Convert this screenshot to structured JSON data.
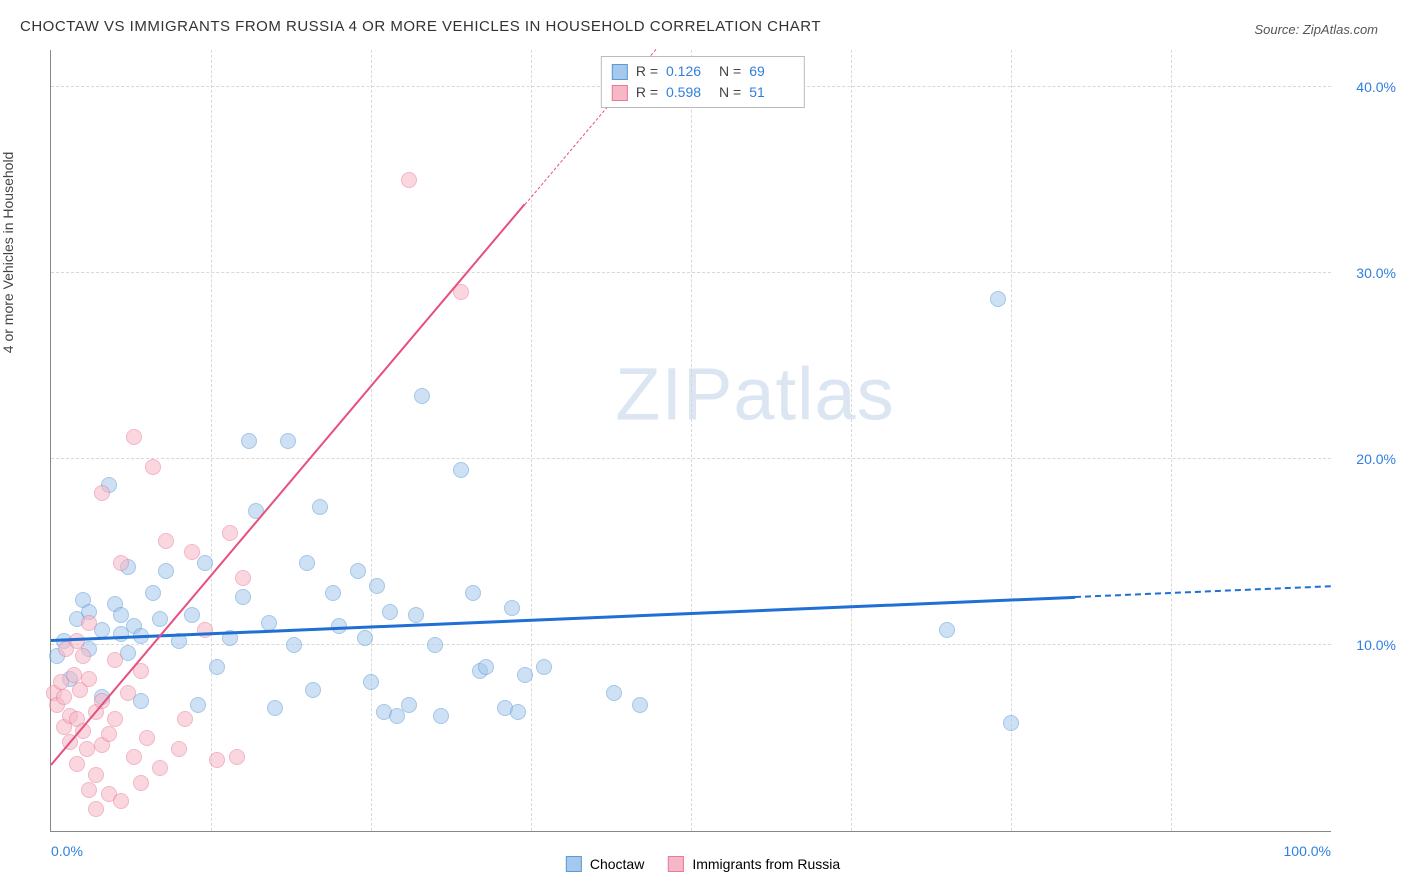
{
  "title": "CHOCTAW VS IMMIGRANTS FROM RUSSIA 4 OR MORE VEHICLES IN HOUSEHOLD CORRELATION CHART",
  "source": "Source: ZipAtlas.com",
  "y_axis_label": "4 or more Vehicles in Household",
  "watermark_a": "ZIP",
  "watermark_b": "atlas",
  "chart": {
    "type": "scatter",
    "xlim": [
      0,
      100
    ],
    "ylim": [
      0,
      42
    ],
    "x_ticks": [
      0,
      100
    ],
    "x_tick_labels": [
      "0.0%",
      "100.0%"
    ],
    "y_ticks": [
      10,
      20,
      30,
      40
    ],
    "y_tick_labels": [
      "10.0%",
      "20.0%",
      "30.0%",
      "40.0%"
    ],
    "x_minor_grid": [
      12.5,
      25,
      37.5,
      50,
      62.5,
      75,
      87.5
    ],
    "background_color": "#ffffff",
    "grid_color": "#d8d8d8",
    "axis_color": "#888888",
    "point_radius": 8,
    "point_stroke_width": 1.5,
    "series": [
      {
        "name": "Choctaw",
        "fill_color": "#a6c8ec",
        "stroke_color": "#5a9bd8",
        "fill_opacity": 0.55,
        "trend_color": "#1f6fd4",
        "trend_width": 2.5,
        "trend_y_at_x0": 10.2,
        "trend_y_at_x100": 13.1,
        "R": "0.126",
        "N": "69",
        "points": [
          [
            0.5,
            9.4
          ],
          [
            1,
            10.2
          ],
          [
            1.5,
            8.2
          ],
          [
            2,
            11.4
          ],
          [
            2.5,
            12.4
          ],
          [
            3,
            9.8
          ],
          [
            3,
            11.8
          ],
          [
            4,
            10.8
          ],
          [
            4,
            7.2
          ],
          [
            4.5,
            18.6
          ],
          [
            5,
            12.2
          ],
          [
            5.5,
            10.6
          ],
          [
            5.5,
            11.6
          ],
          [
            6,
            9.6
          ],
          [
            6,
            14.2
          ],
          [
            6.5,
            11.0
          ],
          [
            7,
            10.5
          ],
          [
            7,
            7.0
          ],
          [
            8,
            12.8
          ],
          [
            8.5,
            11.4
          ],
          [
            9,
            14.0
          ],
          [
            10,
            10.2
          ],
          [
            11,
            11.6
          ],
          [
            11.5,
            6.8
          ],
          [
            12,
            14.4
          ],
          [
            13,
            8.8
          ],
          [
            14,
            10.4
          ],
          [
            15,
            12.6
          ],
          [
            15.5,
            21.0
          ],
          [
            16,
            17.2
          ],
          [
            17,
            11.2
          ],
          [
            17.5,
            6.6
          ],
          [
            18.5,
            21.0
          ],
          [
            19,
            10.0
          ],
          [
            20,
            14.4
          ],
          [
            20.5,
            7.6
          ],
          [
            21,
            17.4
          ],
          [
            22,
            12.8
          ],
          [
            22.5,
            11.0
          ],
          [
            24,
            14.0
          ],
          [
            24.5,
            10.4
          ],
          [
            25,
            8.0
          ],
          [
            25.5,
            13.2
          ],
          [
            26,
            6.4
          ],
          [
            26.5,
            11.8
          ],
          [
            27,
            6.2
          ],
          [
            28,
            6.8
          ],
          [
            28.5,
            11.6
          ],
          [
            29,
            23.4
          ],
          [
            30,
            10.0
          ],
          [
            30.5,
            6.2
          ],
          [
            32,
            19.4
          ],
          [
            33,
            12.8
          ],
          [
            33.5,
            8.6
          ],
          [
            34,
            8.8
          ],
          [
            35.5,
            6.6
          ],
          [
            36,
            12.0
          ],
          [
            36.5,
            6.4
          ],
          [
            37,
            8.4
          ],
          [
            38.5,
            8.8
          ],
          [
            44,
            7.4
          ],
          [
            46,
            6.8
          ],
          [
            70,
            10.8
          ],
          [
            74,
            28.6
          ],
          [
            75,
            5.8
          ]
        ]
      },
      {
        "name": "Immigrants from Russia",
        "fill_color": "#f6b8c6",
        "stroke_color": "#e87a9a",
        "fill_opacity": 0.55,
        "trend_color": "#e84f7d",
        "trend_width": 2.0,
        "trend_y_at_x0": 3.5,
        "trend_y_at_x100": 85.0,
        "R": "0.598",
        "N": "51",
        "points": [
          [
            0.2,
            7.4
          ],
          [
            0.5,
            6.8
          ],
          [
            0.8,
            8.0
          ],
          [
            1,
            5.6
          ],
          [
            1,
            7.2
          ],
          [
            1.2,
            9.8
          ],
          [
            1.5,
            6.2
          ],
          [
            1.5,
            4.8
          ],
          [
            1.8,
            8.4
          ],
          [
            2,
            10.2
          ],
          [
            2,
            6.0
          ],
          [
            2,
            3.6
          ],
          [
            2.3,
            7.6
          ],
          [
            2.5,
            5.4
          ],
          [
            2.5,
            9.4
          ],
          [
            2.8,
            4.4
          ],
          [
            3,
            8.2
          ],
          [
            3,
            11.2
          ],
          [
            3,
            2.2
          ],
          [
            3.5,
            6.4
          ],
          [
            3.5,
            3.0
          ],
          [
            3.5,
            1.2
          ],
          [
            4,
            7.0
          ],
          [
            4,
            4.6
          ],
          [
            4,
            18.2
          ],
          [
            4.5,
            5.2
          ],
          [
            4.5,
            2.0
          ],
          [
            5,
            9.2
          ],
          [
            5,
            6.0
          ],
          [
            5.5,
            14.4
          ],
          [
            5.5,
            1.6
          ],
          [
            6,
            7.4
          ],
          [
            6.5,
            4.0
          ],
          [
            6.5,
            21.2
          ],
          [
            7,
            8.6
          ],
          [
            7,
            2.6
          ],
          [
            7.5,
            5.0
          ],
          [
            8,
            19.6
          ],
          [
            8.5,
            3.4
          ],
          [
            9,
            15.6
          ],
          [
            10,
            4.4
          ],
          [
            10.5,
            6.0
          ],
          [
            11,
            15.0
          ],
          [
            12,
            10.8
          ],
          [
            13,
            3.8
          ],
          [
            14,
            16.0
          ],
          [
            14.5,
            4.0
          ],
          [
            15,
            13.6
          ],
          [
            28,
            35.0
          ],
          [
            32,
            29.0
          ]
        ]
      }
    ]
  },
  "legend": {
    "items": [
      "Choctaw",
      "Immigrants from Russia"
    ]
  },
  "stats_labels": {
    "R": "R  =",
    "N": "N  ="
  }
}
